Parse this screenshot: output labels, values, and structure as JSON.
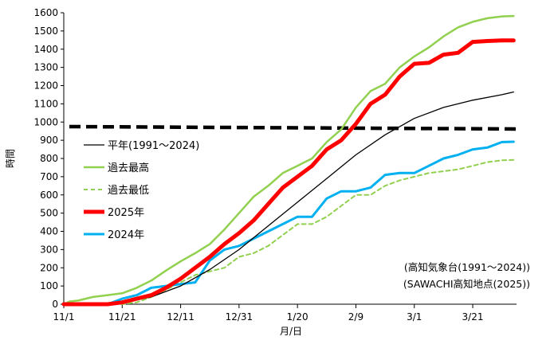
{
  "chart_data": {
    "type": "line",
    "xlabel": "月/日",
    "ylabel": "時間",
    "ylim": [
      0,
      1600
    ],
    "ytick_step": 100,
    "xlim": [
      "11/1",
      "4/5"
    ],
    "x_ticks": [
      {
        "date": "2024-11-01",
        "label": "11/1"
      },
      {
        "date": "2024-11-21",
        "label": "11/21"
      },
      {
        "date": "2024-12-11",
        "label": "12/11"
      },
      {
        "date": "2024-12-31",
        "label": "12/31"
      },
      {
        "date": "2025-01-20",
        "label": "1/20"
      },
      {
        "date": "2025-02-09",
        "label": "2/9"
      },
      {
        "date": "2025-03-01",
        "label": "3/1"
      },
      {
        "date": "2025-03-21",
        "label": "3/21"
      }
    ],
    "grid": false,
    "legend_position": "left-middle",
    "reference_line": {
      "value": 975,
      "style": "dashed",
      "color": "#000000"
    },
    "series": [
      {
        "name": "平年(1991～2024)",
        "color": "#000000",
        "style": "solid",
        "x": [
          "2024-11-01",
          "2024-11-11",
          "2024-11-21",
          "2024-12-01",
          "2024-12-11",
          "2024-12-21",
          "2024-12-31",
          "2025-01-10",
          "2025-01-20",
          "2025-01-30",
          "2025-02-09",
          "2025-02-19",
          "2025-03-01",
          "2025-03-11",
          "2025-03-21",
          "2025-03-31",
          "2025-04-04"
        ],
        "y": [
          0,
          0,
          8,
          40,
          100,
          190,
          300,
          430,
          560,
          690,
          820,
          930,
          1020,
          1080,
          1120,
          1150,
          1165
        ]
      },
      {
        "name": "過去最高",
        "color": "#92d050",
        "style": "solid",
        "x": [
          "2024-11-01",
          "2024-11-03",
          "2024-11-06",
          "2024-11-11",
          "2024-11-16",
          "2024-11-21",
          "2024-11-26",
          "2024-12-01",
          "2024-12-06",
          "2024-12-11",
          "2024-12-16",
          "2024-12-21",
          "2024-12-26",
          "2024-12-31",
          "2025-01-05",
          "2025-01-10",
          "2025-01-15",
          "2025-01-20",
          "2025-01-25",
          "2025-01-30",
          "2025-02-04",
          "2025-02-09",
          "2025-02-14",
          "2025-02-19",
          "2025-02-24",
          "2025-03-01",
          "2025-03-06",
          "2025-03-11",
          "2025-03-16",
          "2025-03-21",
          "2025-03-26",
          "2025-03-31",
          "2025-04-04"
        ],
        "y": [
          0,
          15,
          20,
          40,
          50,
          60,
          90,
          130,
          185,
          235,
          280,
          330,
          410,
          500,
          590,
          650,
          720,
          760,
          800,
          890,
          960,
          1080,
          1170,
          1210,
          1300,
          1360,
          1410,
          1470,
          1520,
          1550,
          1570,
          1580,
          1582
        ]
      },
      {
        "name": "過去最低",
        "color": "#92d050",
        "style": "dashed",
        "x": [
          "2024-11-01",
          "2024-11-21",
          "2024-11-26",
          "2024-12-01",
          "2024-12-06",
          "2024-12-11",
          "2024-12-16",
          "2024-12-21",
          "2024-12-26",
          "2024-12-31",
          "2025-01-05",
          "2025-01-10",
          "2025-01-15",
          "2025-01-20",
          "2025-01-25",
          "2025-01-30",
          "2025-02-04",
          "2025-02-09",
          "2025-02-14",
          "2025-02-19",
          "2025-02-24",
          "2025-03-01",
          "2025-03-06",
          "2025-03-11",
          "2025-03-16",
          "2025-03-21",
          "2025-03-26",
          "2025-03-31",
          "2025-04-04"
        ],
        "y": [
          0,
          0,
          10,
          40,
          80,
          120,
          160,
          180,
          200,
          260,
          280,
          320,
          380,
          440,
          440,
          480,
          540,
          600,
          600,
          650,
          680,
          700,
          720,
          730,
          740,
          760,
          780,
          790,
          792
        ]
      },
      {
        "name": "2025年",
        "color": "#ff0000",
        "style": "solid",
        "x": [
          "2024-11-01",
          "2024-11-16",
          "2024-11-21",
          "2024-11-26",
          "2024-12-01",
          "2024-12-06",
          "2024-12-11",
          "2024-12-16",
          "2024-12-21",
          "2024-12-26",
          "2024-12-31",
          "2025-01-05",
          "2025-01-10",
          "2025-01-15",
          "2025-01-20",
          "2025-01-25",
          "2025-01-30",
          "2025-02-04",
          "2025-02-09",
          "2025-02-14",
          "2025-02-19",
          "2025-02-24",
          "2025-03-01",
          "2025-03-06",
          "2025-03-11",
          "2025-03-16",
          "2025-03-21",
          "2025-03-26",
          "2025-03-31",
          "2025-04-04"
        ],
        "y": [
          0,
          0,
          10,
          30,
          50,
          90,
          140,
          200,
          260,
          330,
          390,
          460,
          550,
          640,
          700,
          760,
          850,
          900,
          990,
          1100,
          1150,
          1250,
          1320,
          1325,
          1370,
          1380,
          1440,
          1445,
          1448,
          1448
        ]
      },
      {
        "name": "2024年",
        "color": "#00b0f0",
        "style": "solid",
        "x": [
          "2024-11-01",
          "2024-11-16",
          "2024-11-21",
          "2024-11-26",
          "2024-12-01",
          "2024-12-06",
          "2024-12-11",
          "2024-12-16",
          "2024-12-21",
          "2024-12-26",
          "2024-12-31",
          "2025-01-05",
          "2025-01-10",
          "2025-01-15",
          "2025-01-20",
          "2025-01-25",
          "2025-01-30",
          "2025-02-04",
          "2025-02-09",
          "2025-02-14",
          "2025-02-19",
          "2025-02-24",
          "2025-03-01",
          "2025-03-06",
          "2025-03-11",
          "2025-03-16",
          "2025-03-21",
          "2025-03-26",
          "2025-03-31",
          "2025-04-04"
        ],
        "y": [
          0,
          0,
          30,
          50,
          90,
          100,
          110,
          120,
          240,
          300,
          320,
          360,
          400,
          440,
          480,
          480,
          580,
          620,
          620,
          640,
          710,
          720,
          720,
          760,
          800,
          820,
          850,
          860,
          890,
          892
        ]
      }
    ],
    "annotations": [
      "(高知気象台(1991～2024))",
      "(SAWACHI高知地点(2025))"
    ]
  }
}
